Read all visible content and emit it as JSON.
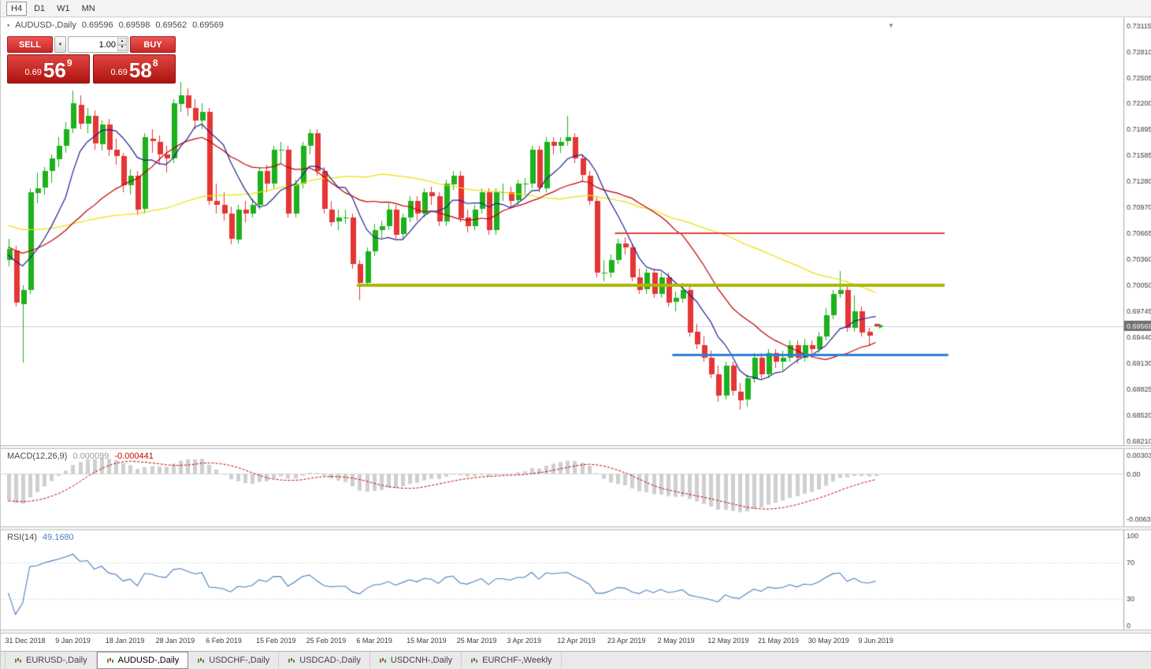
{
  "toolbar": {
    "periods": [
      "H4",
      "D1",
      "W1",
      "MN"
    ],
    "active_period": "H4"
  },
  "icons": {
    "chart_bullet": "▪",
    "dropdown_arrow": "▼",
    "spinner_up": "▲",
    "spinner_down": "▼",
    "collapse_arrow": "▼"
  },
  "chart": {
    "symbol_title": "AUDUSD-,Daily",
    "ohlc": {
      "open": "0.69596",
      "high": "0.69598",
      "low": "0.69562",
      "close": "0.69569"
    },
    "one_click": {
      "sell_label": "SELL",
      "buy_label": "BUY",
      "volume": "1.00",
      "sell_price": {
        "prefix": "0.69",
        "big": "56",
        "sup": "9"
      },
      "buy_price": {
        "prefix": "0.69",
        "big": "58",
        "sup": "8"
      }
    }
  },
  "chart_data": {
    "type": "candlestick",
    "symbol": "AUDUSD-",
    "timeframe": "Daily",
    "title": "AUDUSD-,Daily",
    "x_labels": [
      "31 Dec 2018",
      "9 Jan 2019",
      "18 Jan 2019",
      "28 Jan 2019",
      "6 Feb 2019",
      "15 Feb 2019",
      "25 Feb 2019",
      "6 Mar 2019",
      "15 Mar 2019",
      "25 Mar 2019",
      "3 Apr 2019",
      "12 Apr 2019",
      "23 Apr 2019",
      "2 May 2019",
      "12 May 2019",
      "21 May 2019",
      "30 May 2019",
      "9 Jun 2019"
    ],
    "label_step": 7,
    "price_axis": {
      "top": 0.73115,
      "bottom": 0.6821,
      "ticks": [
        "0.73115",
        "0.72810",
        "0.72505",
        "0.72200",
        "0.71895",
        "0.71585",
        "0.71280",
        "0.70970",
        "0.70665",
        "0.70360",
        "0.70050",
        "0.69745",
        "0.69440",
        "0.69130",
        "0.68825",
        "0.68520",
        "0.68210"
      ]
    },
    "current_price": "0.69569",
    "candles": [
      [
        0.7035,
        0.706,
        0.7028,
        0.7048
      ],
      [
        0.7046,
        0.7052,
        0.698,
        0.6985
      ],
      [
        0.6983,
        0.7005,
        0.6914,
        0.7
      ],
      [
        0.7,
        0.712,
        0.6995,
        0.7115
      ],
      [
        0.7114,
        0.7138,
        0.7102,
        0.712
      ],
      [
        0.712,
        0.7145,
        0.7112,
        0.714
      ],
      [
        0.714,
        0.716,
        0.7126,
        0.7155
      ],
      [
        0.7154,
        0.718,
        0.7145,
        0.717
      ],
      [
        0.717,
        0.7198,
        0.7162,
        0.719
      ],
      [
        0.719,
        0.7235,
        0.7185,
        0.722
      ],
      [
        0.7218,
        0.723,
        0.719,
        0.7196
      ],
      [
        0.7196,
        0.7215,
        0.7185,
        0.7205
      ],
      [
        0.7205,
        0.7212,
        0.7165,
        0.7172
      ],
      [
        0.7172,
        0.72,
        0.7164,
        0.7195
      ],
      [
        0.7195,
        0.7202,
        0.7158,
        0.7165
      ],
      [
        0.7165,
        0.7178,
        0.7148,
        0.7158
      ],
      [
        0.7158,
        0.7162,
        0.7115,
        0.7124
      ],
      [
        0.7124,
        0.7142,
        0.7112,
        0.7135
      ],
      [
        0.7135,
        0.714,
        0.7088,
        0.7095
      ],
      [
        0.7095,
        0.7185,
        0.709,
        0.718
      ],
      [
        0.7178,
        0.719,
        0.7162,
        0.7175
      ],
      [
        0.7175,
        0.7182,
        0.7148,
        0.716
      ],
      [
        0.716,
        0.717,
        0.7138,
        0.7155
      ],
      [
        0.7155,
        0.7225,
        0.715,
        0.722
      ],
      [
        0.722,
        0.7245,
        0.721,
        0.723
      ],
      [
        0.723,
        0.7238,
        0.7205,
        0.7215
      ],
      [
        0.7215,
        0.7225,
        0.719,
        0.72
      ],
      [
        0.72,
        0.722,
        0.719,
        0.721
      ],
      [
        0.721,
        0.7215,
        0.71,
        0.7105
      ],
      [
        0.7105,
        0.7125,
        0.709,
        0.71
      ],
      [
        0.71,
        0.7115,
        0.7082,
        0.709
      ],
      [
        0.709,
        0.7098,
        0.7054,
        0.706
      ],
      [
        0.706,
        0.71,
        0.7055,
        0.7095
      ],
      [
        0.7095,
        0.7105,
        0.708,
        0.709
      ],
      [
        0.709,
        0.7108,
        0.7085,
        0.71
      ],
      [
        0.71,
        0.7145,
        0.7095,
        0.714
      ],
      [
        0.714,
        0.7148,
        0.7115,
        0.7125
      ],
      [
        0.7125,
        0.717,
        0.712,
        0.7165
      ],
      [
        0.7165,
        0.7175,
        0.715,
        0.7165
      ],
      [
        0.7165,
        0.717,
        0.7085,
        0.709
      ],
      [
        0.709,
        0.713,
        0.7085,
        0.7125
      ],
      [
        0.7125,
        0.7175,
        0.712,
        0.717
      ],
      [
        0.717,
        0.719,
        0.716,
        0.7185
      ],
      [
        0.7185,
        0.719,
        0.7135,
        0.714
      ],
      [
        0.714,
        0.7145,
        0.709,
        0.7095
      ],
      [
        0.7095,
        0.7105,
        0.7075,
        0.708
      ],
      [
        0.708,
        0.7095,
        0.707,
        0.7085
      ],
      [
        0.7085,
        0.7095,
        0.7078,
        0.7085
      ],
      [
        0.7085,
        0.709,
        0.7025,
        0.703
      ],
      [
        0.703,
        0.7035,
        0.6988,
        0.7008
      ],
      [
        0.7008,
        0.705,
        0.7003,
        0.7045
      ],
      [
        0.7045,
        0.7078,
        0.704,
        0.707
      ],
      [
        0.707,
        0.7082,
        0.706,
        0.7075
      ],
      [
        0.7075,
        0.7102,
        0.707,
        0.7095
      ],
      [
        0.7095,
        0.71,
        0.706,
        0.7065
      ],
      [
        0.7065,
        0.709,
        0.706,
        0.7085
      ],
      [
        0.7085,
        0.711,
        0.708,
        0.7105
      ],
      [
        0.7105,
        0.711,
        0.7082,
        0.709
      ],
      [
        0.709,
        0.712,
        0.7085,
        0.7115
      ],
      [
        0.7115,
        0.7122,
        0.71,
        0.711
      ],
      [
        0.711,
        0.7115,
        0.7075,
        0.708
      ],
      [
        0.708,
        0.713,
        0.7075,
        0.7125
      ],
      [
        0.7125,
        0.714,
        0.7118,
        0.7135
      ],
      [
        0.7135,
        0.714,
        0.708,
        0.7085
      ],
      [
        0.7085,
        0.7095,
        0.7068,
        0.7075
      ],
      [
        0.7075,
        0.71,
        0.707,
        0.7095
      ],
      [
        0.7095,
        0.712,
        0.709,
        0.7115
      ],
      [
        0.7115,
        0.712,
        0.7065,
        0.707
      ],
      [
        0.707,
        0.712,
        0.7065,
        0.7115
      ],
      [
        0.7115,
        0.7125,
        0.7105,
        0.7115
      ],
      [
        0.7115,
        0.7122,
        0.7098,
        0.7105
      ],
      [
        0.7105,
        0.713,
        0.71,
        0.7125
      ],
      [
        0.7125,
        0.7132,
        0.7112,
        0.7125
      ],
      [
        0.7125,
        0.717,
        0.712,
        0.7165
      ],
      [
        0.7165,
        0.717,
        0.7115,
        0.712
      ],
      [
        0.712,
        0.718,
        0.7115,
        0.7175
      ],
      [
        0.7175,
        0.718,
        0.716,
        0.717
      ],
      [
        0.717,
        0.718,
        0.7162,
        0.7175
      ],
      [
        0.7175,
        0.7205,
        0.717,
        0.718
      ],
      [
        0.718,
        0.7185,
        0.715,
        0.7155
      ],
      [
        0.7155,
        0.716,
        0.7128,
        0.7135
      ],
      [
        0.7135,
        0.714,
        0.71,
        0.7105
      ],
      [
        0.7105,
        0.711,
        0.7015,
        0.702
      ],
      [
        0.702,
        0.7035,
        0.701,
        0.702
      ],
      [
        0.702,
        0.7042,
        0.7015,
        0.7035
      ],
      [
        0.7035,
        0.706,
        0.703,
        0.7055
      ],
      [
        0.7055,
        0.7062,
        0.7042,
        0.705
      ],
      [
        0.705,
        0.7055,
        0.701,
        0.7015
      ],
      [
        0.7015,
        0.7025,
        0.6995,
        0.7
      ],
      [
        0.7,
        0.7025,
        0.6995,
        0.702
      ],
      [
        0.702,
        0.7025,
        0.699,
        0.6995
      ],
      [
        0.6995,
        0.702,
        0.699,
        0.7015
      ],
      [
        0.7015,
        0.702,
        0.698,
        0.6985
      ],
      [
        0.6985,
        0.6998,
        0.6975,
        0.699
      ],
      [
        0.699,
        0.7008,
        0.6985,
        0.7
      ],
      [
        0.7,
        0.7005,
        0.6945,
        0.695
      ],
      [
        0.695,
        0.696,
        0.693,
        0.6935
      ],
      [
        0.6935,
        0.6945,
        0.6915,
        0.692
      ],
      [
        0.692,
        0.6928,
        0.6895,
        0.69
      ],
      [
        0.69,
        0.691,
        0.6868,
        0.6875
      ],
      [
        0.6875,
        0.6915,
        0.687,
        0.691
      ],
      [
        0.691,
        0.6915,
        0.6875,
        0.688
      ],
      [
        0.688,
        0.689,
        0.6858,
        0.687
      ],
      [
        0.687,
        0.69,
        0.6862,
        0.6895
      ],
      [
        0.6895,
        0.6925,
        0.689,
        0.692
      ],
      [
        0.692,
        0.6925,
        0.6895,
        0.69
      ],
      [
        0.69,
        0.693,
        0.6895,
        0.6925
      ],
      [
        0.6925,
        0.693,
        0.6908,
        0.6915
      ],
      [
        0.6915,
        0.6928,
        0.6905,
        0.692
      ],
      [
        0.692,
        0.694,
        0.6915,
        0.6935
      ],
      [
        0.6935,
        0.694,
        0.6913,
        0.692
      ],
      [
        0.692,
        0.6942,
        0.6915,
        0.6935
      ],
      [
        0.6935,
        0.694,
        0.692,
        0.693
      ],
      [
        0.693,
        0.695,
        0.6925,
        0.6945
      ],
      [
        0.6945,
        0.6978,
        0.694,
        0.697
      ],
      [
        0.697,
        0.7,
        0.6965,
        0.6995
      ],
      [
        0.6995,
        0.7022,
        0.699,
        0.7
      ],
      [
        0.7,
        0.7005,
        0.695,
        0.6955
      ],
      [
        0.6955,
        0.6993,
        0.695,
        0.6975
      ],
      [
        0.6975,
        0.698,
        0.6945,
        0.695
      ],
      [
        0.695,
        0.6955,
        0.6935,
        0.6945
      ],
      [
        0.69596,
        0.69598,
        0.69562,
        0.69569
      ]
    ],
    "moving_averages": [
      {
        "name": "slow-ma",
        "period": 50,
        "color": "#ede000"
      },
      {
        "name": "medium-ma",
        "period": 20,
        "color": "#c00000"
      },
      {
        "name": "fast-ma",
        "period": 8,
        "color": "#22228e"
      }
    ],
    "horizontal_lines": [
      {
        "name": "resistance-line",
        "price": 0.70665,
        "color": "#e5423e",
        "width": 2,
        "from_index": 85,
        "to_index": 131
      },
      {
        "name": "support-line",
        "price": 0.7005,
        "color": "#a9b807",
        "width": 4,
        "from_index": 49,
        "to_index": 131
      },
      {
        "name": "lower-support-line",
        "price": 0.6923,
        "color": "#2f80d0",
        "width": 3,
        "from_index": 93,
        "to_index": 131.5
      }
    ],
    "indicators": [
      {
        "label": "MACD(12,26,9)",
        "value_main": "0.000099",
        "value_signal": "-0.000441",
        "axis_max": "0.003035",
        "axis_mid": "0.00",
        "axis_min": "-0.006315",
        "histogram_color": "#cfcfcf",
        "signal_color": "#cc0000"
      },
      {
        "label": "RSI(14)",
        "value": "49.1680",
        "axis": [
          "100",
          "70",
          "30",
          "0"
        ],
        "levels": [
          70,
          30
        ],
        "line_color": "#4c7ec0"
      }
    ],
    "colors": {
      "up": "#1db11d",
      "down": "#e53535",
      "bid_line": "#cfcfcf",
      "badge": "#6e6e6e",
      "axis_line": "#a8a8a8",
      "axis_text": "#3c3c3c"
    }
  },
  "tabs": {
    "items": [
      "EURUSD-,Daily",
      "AUDUSD-,Daily",
      "USDCHF-,Daily",
      "USDCAD-,Daily",
      "USDCNH-,Daily",
      "EURCHF-,Weekly"
    ],
    "active_index": 1
  }
}
